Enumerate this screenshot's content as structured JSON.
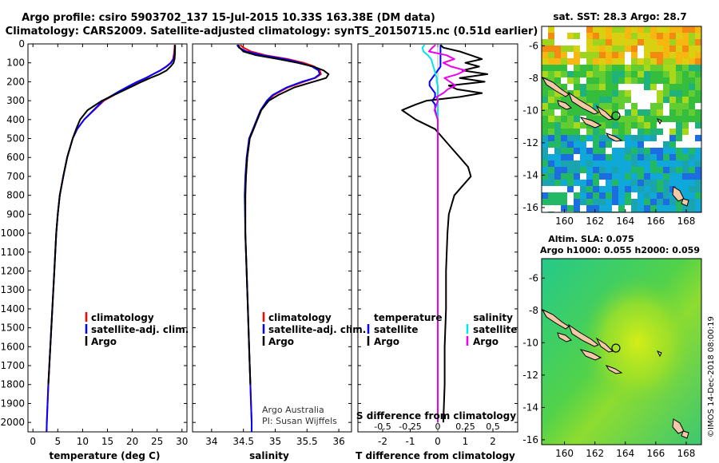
{
  "header": {
    "title_line1": "Argo profile: csiro 5903702_137 15-Jul-2015 10.33S 163.38E (DM data)",
    "title_line2": "Climatology: CARS2009. Satellite-adjusted climatology: synTS_20150715.nc (0.51d earlier)"
  },
  "colors": {
    "climatology": "#ff0000",
    "satellite": "#0000ff",
    "argo": "#000000",
    "sal_satellite": "#00e5ee",
    "sal_argo": "#ee00ee",
    "land": "#f2c8a6"
  },
  "depth_axis": {
    "min": 0,
    "max": 2050,
    "ticks": [
      0,
      100,
      200,
      300,
      400,
      500,
      600,
      700,
      800,
      900,
      1000,
      1100,
      1200,
      1300,
      1400,
      1500,
      1600,
      1700,
      1800,
      1900,
      2000
    ]
  },
  "chart_data": [
    {
      "type": "line",
      "name": "temperature-profile",
      "xlabel": "temperature (deg C)",
      "xlim": [
        -1,
        31
      ],
      "xticks": [
        0,
        5,
        10,
        15,
        20,
        25,
        30
      ],
      "ylim": [
        2050,
        0
      ],
      "legend": [
        "climatology",
        "satellite-adj. clim.",
        "Argo"
      ],
      "depth": [
        5,
        20,
        50,
        80,
        100,
        120,
        140,
        160,
        180,
        200,
        220,
        250,
        300,
        350,
        400,
        450,
        500,
        600,
        700,
        800,
        900,
        1000,
        1200,
        1400,
        1600,
        1800,
        2000,
        2050
      ],
      "series": [
        {
          "name": "climatology",
          "color_key": "climatology",
          "values": [
            28.5,
            28.5,
            28.4,
            28.2,
            27.7,
            26.8,
            25.6,
            24.2,
            22.8,
            21.2,
            19.8,
            17.7,
            14.3,
            12.3,
            10.3,
            8.9,
            8.0,
            6.9,
            6.1,
            5.4,
            5.0,
            4.7,
            4.3,
            3.9,
            3.5,
            3.1,
            2.8,
            2.75
          ]
        },
        {
          "name": "satellite-adj. clim.",
          "color_key": "satellite",
          "values": [
            28.6,
            28.6,
            28.5,
            28.3,
            27.8,
            26.9,
            25.7,
            24.2,
            22.7,
            21.0,
            19.5,
            17.4,
            14.1,
            12.2,
            10.3,
            8.9,
            8.0,
            6.9,
            6.1,
            5.4,
            5.0,
            4.7,
            4.3,
            3.9,
            3.5,
            3.1,
            2.8,
            2.75
          ]
        },
        {
          "name": "Argo",
          "color_key": "argo",
          "values": [
            28.6,
            28.6,
            28.6,
            28.5,
            28.3,
            27.7,
            26.9,
            25.5,
            23.6,
            21.9,
            20.3,
            17.9,
            13.9,
            11.0,
            9.5,
            8.7,
            8.0,
            6.9,
            6.1,
            5.4,
            5.0,
            4.7,
            4.3,
            3.9,
            3.5,
            3.1,
            null,
            null
          ]
        }
      ]
    },
    {
      "type": "line",
      "name": "salinity-profile",
      "xlabel": "salinity",
      "xlim": [
        33.7,
        36.2
      ],
      "xticks": [
        34,
        34.5,
        35,
        35.5,
        36
      ],
      "ylim": [
        2050,
        0
      ],
      "legend": [
        "climatology",
        "satellite-adj. clim.",
        "Argo"
      ],
      "annotations": [
        "Argo Australia",
        "PI: Susan Wijffels"
      ],
      "depth": [
        5,
        20,
        40,
        60,
        80,
        100,
        120,
        140,
        160,
        180,
        200,
        230,
        270,
        300,
        350,
        400,
        450,
        500,
        600,
        700,
        800,
        1000,
        1200,
        1400,
        1600,
        1800,
        2000,
        2050
      ],
      "series": [
        {
          "name": "climatology",
          "color_key": "climatology",
          "values": [
            34.45,
            34.5,
            34.62,
            34.85,
            35.2,
            35.45,
            35.62,
            35.7,
            35.72,
            35.63,
            35.45,
            35.2,
            34.98,
            34.88,
            34.78,
            34.72,
            34.66,
            34.6,
            34.56,
            34.54,
            34.53,
            34.53,
            34.55,
            34.57,
            34.59,
            34.61,
            34.63,
            34.63
          ]
        },
        {
          "name": "satellite-adj. clim.",
          "color_key": "satellite",
          "values": [
            34.4,
            34.43,
            34.55,
            34.8,
            35.15,
            35.4,
            35.58,
            35.68,
            35.7,
            35.62,
            35.42,
            35.18,
            34.96,
            34.87,
            34.77,
            34.71,
            34.65,
            34.59,
            34.55,
            34.53,
            34.52,
            34.53,
            34.55,
            34.57,
            34.59,
            34.61,
            34.63,
            34.63
          ]
        },
        {
          "name": "Argo",
          "color_key": "argo",
          "values": [
            34.42,
            34.44,
            34.5,
            34.7,
            35.05,
            35.35,
            35.6,
            35.76,
            35.84,
            35.8,
            35.6,
            35.3,
            35.05,
            34.9,
            34.78,
            34.72,
            34.66,
            34.6,
            34.56,
            34.54,
            34.53,
            34.53,
            34.55,
            34.57,
            34.59,
            34.61,
            null,
            null
          ]
        }
      ]
    },
    {
      "type": "line",
      "name": "difference-profile",
      "xlabel": "T difference from climatology",
      "xlabel_top": "S difference from climatology",
      "xlim": [
        -2.9,
        2.9
      ],
      "xticks": [
        -2,
        -1,
        0,
        1,
        2
      ],
      "top_ticks_labels": [
        "-0.5",
        "-0.25",
        "0",
        "0.25",
        "0.5"
      ],
      "top_ticks_values": [
        -0.5,
        -0.25,
        0,
        0.25,
        0.5
      ],
      "ylim": [
        2050,
        0
      ],
      "legend_left_title": "temperature",
      "legend_left": [
        "satellite",
        "Argo"
      ],
      "legend_right_title": "salinity",
      "legend_right": [
        "satellite",
        "Argo"
      ],
      "depth": [
        5,
        20,
        40,
        60,
        80,
        100,
        120,
        140,
        160,
        180,
        200,
        220,
        240,
        260,
        280,
        300,
        320,
        350,
        400,
        450,
        500,
        550,
        600,
        650,
        700,
        750,
        800,
        900,
        1000,
        1200,
        1400,
        1600,
        1800,
        2000
      ],
      "series": [
        {
          "name": "temperature satellite",
          "color_key": "satellite",
          "values": [
            0.1,
            0.1,
            0.1,
            0.1,
            0.1,
            0.1,
            0.1,
            0.0,
            -0.1,
            -0.2,
            -0.3,
            -0.3,
            -0.2,
            -0.1,
            -0.1,
            -0.2,
            -0.1,
            -0.1,
            0.0,
            0.0,
            0.0,
            0.0,
            0.0,
            0.0,
            0.0,
            0.0,
            0.0,
            0.0,
            0.0,
            0.0,
            0.0,
            0.0,
            0.0,
            0.0
          ]
        },
        {
          "name": "temperature Argo",
          "color_key": "argo",
          "values": [
            0.1,
            0.2,
            0.8,
            1.2,
            1.6,
            1.0,
            1.5,
            0.9,
            1.8,
            0.8,
            1.7,
            0.4,
            0.7,
            1.6,
            0.8,
            -0.4,
            -0.8,
            -1.3,
            -0.8,
            -0.1,
            0.2,
            0.5,
            0.8,
            1.1,
            1.2,
            0.9,
            0.6,
            0.4,
            0.35,
            0.3,
            0.3,
            0.25,
            0.25,
            0.2
          ]
        },
        {
          "name": "salinity satellite",
          "color_key": "sal_satellite",
          "values": [
            -0.12,
            -0.14,
            -0.13,
            -0.09,
            -0.06,
            -0.05,
            -0.04,
            -0.03,
            -0.02,
            -0.01,
            -0.01,
            0.0,
            0.0,
            0.0,
            0.0,
            0.0,
            0.0,
            0.0,
            0.0,
            0.0,
            0.0,
            0.0,
            0.0,
            0.0,
            0.0,
            0.0,
            0.0,
            0.0,
            0.0,
            0.0,
            0.0,
            0.0,
            0.0,
            0.0
          ]
        },
        {
          "name": "salinity Argo",
          "color_key": "sal_argo",
          "values": [
            -0.02,
            -0.05,
            -0.08,
            0.08,
            0.15,
            0.05,
            0.12,
            0.25,
            0.18,
            0.06,
            0.11,
            0.16,
            0.09,
            0.05,
            -0.01,
            0.0,
            -0.01,
            -0.03,
            0.0,
            0.0,
            0.0,
            0.0,
            0.0,
            0.0,
            0.0,
            0.0,
            0.0,
            0.0,
            0.0,
            0.0,
            0.0,
            0.0,
            0.0,
            0.0
          ]
        }
      ]
    },
    {
      "type": "heatmap",
      "name": "sst-map",
      "title": "sat. SST: 28.3 Argo: 28.7",
      "xlim": [
        158.5,
        169.0
      ],
      "ylim": [
        -16.3,
        -4.8
      ],
      "xticks": [
        160,
        162,
        164,
        166,
        168
      ],
      "yticks": [
        -6,
        -8,
        -10,
        -12,
        -14,
        -16
      ],
      "argo_position": {
        "lon": 163.38,
        "lat": -10.33
      }
    },
    {
      "type": "heatmap",
      "name": "sla-map",
      "title_line1": "Altim. SLA: 0.075",
      "title_line2": "Argo h1000: 0.055 h2000: 0.059",
      "xlim": [
        158.5,
        169.0
      ],
      "ylim": [
        -16.3,
        -4.8
      ],
      "xticks": [
        160,
        162,
        164,
        166,
        168
      ],
      "yticks": [
        -6,
        -8,
        -10,
        -12,
        -14,
        -16
      ],
      "argo_position": {
        "lon": 163.38,
        "lat": -10.33
      }
    }
  ],
  "footer": {
    "stamp": "©IMOS 14-Dec-2018 08:00:19"
  }
}
